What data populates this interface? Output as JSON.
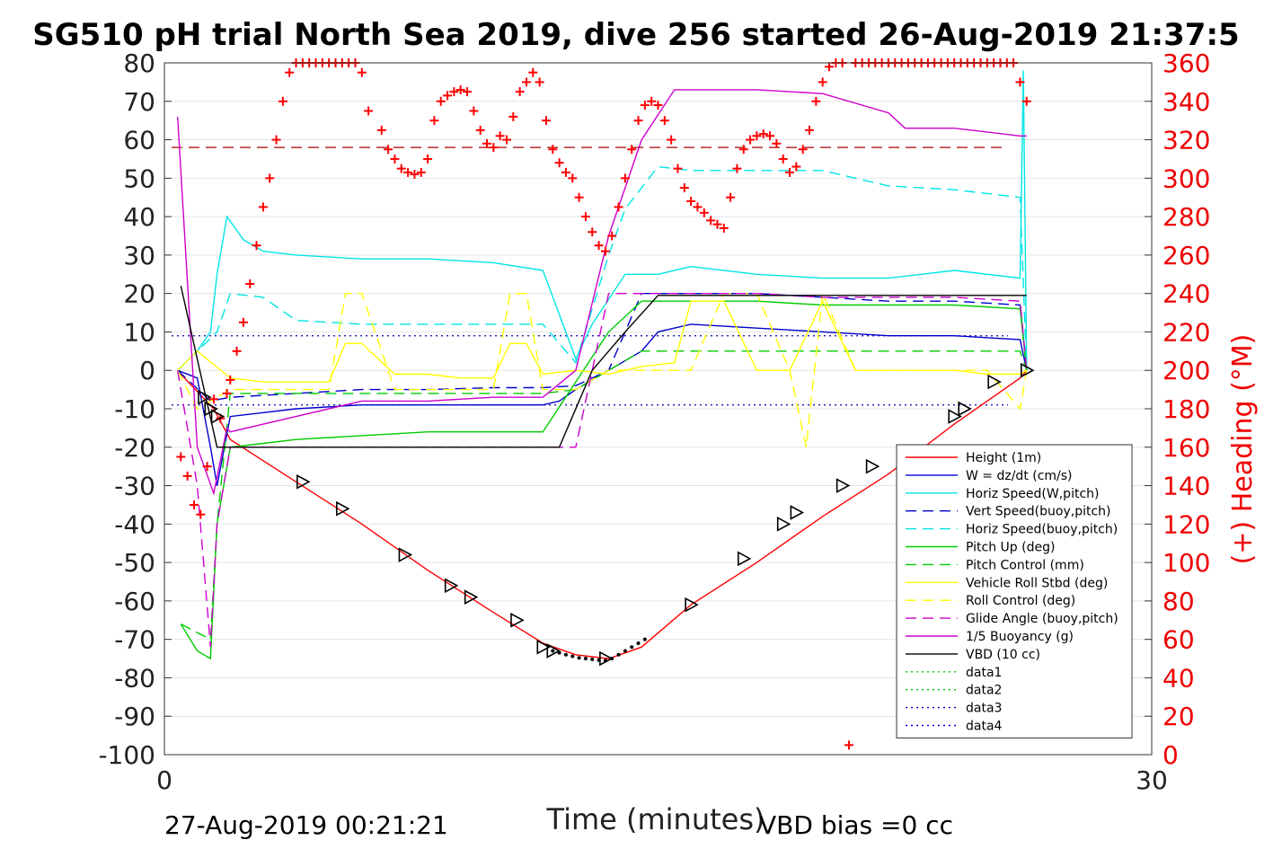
{
  "chart_data": {
    "type": "line",
    "title": "SG510 pH trial North Sea 2019, dive 256 started 26-Aug-2019 21:37:5",
    "xlabel": "Time (minutes)",
    "ylabel_right": "(+) Heading (°M)",
    "footer_left": "27-Aug-2019 00:21:21",
    "footer_right": "VBD bias =0 cc",
    "xlim": [
      0,
      30
    ],
    "ylim_left": [
      -100,
      80
    ],
    "ylim_right": [
      0,
      360
    ],
    "x_ticks": [
      "0",
      "30"
    ],
    "y_ticks_left": [
      "80",
      "70",
      "60",
      "50",
      "40",
      "30",
      "20",
      "10",
      "0",
      "-10",
      "-20",
      "-30",
      "-40",
      "-50",
      "-60",
      "-70",
      "-80",
      "-90",
      "-100"
    ],
    "y_ticks_right": [
      "360",
      "340",
      "320",
      "300",
      "280",
      "260",
      "240",
      "220",
      "200",
      "180",
      "160",
      "140",
      "120",
      "100",
      "80",
      "60",
      "40",
      "20",
      "0"
    ],
    "grid": true,
    "legend_position": "bottom-right",
    "legend": [
      {
        "label": "Height (1m)",
        "color": "#ff0000",
        "dash": "solid"
      },
      {
        "label": "W = dz/dt (cm/s)",
        "color": "#0000cc",
        "dash": "solid"
      },
      {
        "label": "Horiz Speed(W,pitch)",
        "color": "#00e5e5",
        "dash": "solid"
      },
      {
        "label": "Vert Speed(buoy,pitch)",
        "color": "#0000cc",
        "dash": "dashed"
      },
      {
        "label": "Horiz Speed(buoy,pitch)",
        "color": "#00e5e5",
        "dash": "dashed"
      },
      {
        "label": "Pitch Up (deg)",
        "color": "#00cc00",
        "dash": "solid"
      },
      {
        "label": "Pitch Control (mm)",
        "color": "#00cc00",
        "dash": "dashed"
      },
      {
        "label": "Vehicle Roll Stbd (deg)",
        "color": "#ffff00",
        "dash": "solid"
      },
      {
        "label": "Roll Control (deg)",
        "color": "#ffff00",
        "dash": "dashed"
      },
      {
        "label": "Glide Angle (buoy,pitch)",
        "color": "#cc00cc",
        "dash": "dashed"
      },
      {
        "label": "1/5 Buoyancy (g)",
        "color": "#cc00cc",
        "dash": "solid"
      },
      {
        "label": "VBD (10 cc)",
        "color": "#000000",
        "dash": "solid"
      },
      {
        "label": "data1",
        "color": "#00cc00",
        "dash": "dotted"
      },
      {
        "label": "data2",
        "color": "#00cc00",
        "dash": "dotted"
      },
      {
        "label": "data3",
        "color": "#0000cc",
        "dash": "dotted"
      },
      {
        "label": "data4",
        "color": "#0000cc",
        "dash": "dotted"
      }
    ],
    "reference_lines": [
      {
        "axis": "left",
        "y": 58,
        "color": "#aa0000",
        "dash": "dashed"
      },
      {
        "axis": "left",
        "y": 9,
        "color": "#0000aa",
        "dash": "dotted"
      },
      {
        "axis": "left",
        "y": -9,
        "color": "#0000aa",
        "dash": "dotted"
      }
    ],
    "series": [
      {
        "name": "Height (1m)",
        "color": "#ff0000",
        "dash": "solid",
        "axis": "left",
        "x": [
          0.5,
          1.5,
          2,
          4,
          6,
          8,
          10,
          11.5,
          12.5,
          13.5,
          14.5,
          16,
          18,
          20,
          22,
          24,
          26,
          26.2
        ],
        "y": [
          -1,
          -10,
          -18,
          -29,
          -40,
          -52,
          -63,
          -71,
          -74,
          -75,
          -72,
          -61,
          -50,
          -38,
          -27,
          -14,
          -2,
          0
        ]
      },
      {
        "name": "W = dz/dt (cm/s)",
        "color": "#0000cc",
        "dash": "solid",
        "axis": "left",
        "x": [
          0.4,
          1,
          1.4,
          1.6,
          2,
          3,
          4,
          6,
          8,
          10,
          11.5,
          12,
          12.5,
          13.5,
          14.5,
          15,
          16,
          18,
          20,
          22,
          24,
          26,
          26.2
        ],
        "y": [
          0,
          -2,
          -20,
          -30,
          -12,
          -11,
          -10,
          -9,
          -9,
          -9,
          -9,
          -8,
          -5,
          0,
          5,
          10,
          12,
          11,
          10,
          9,
          9,
          8,
          0
        ]
      },
      {
        "name": "Horiz Speed(W,pitch)",
        "color": "#00e5e5",
        "dash": "solid",
        "axis": "left",
        "x": [
          0.4,
          1,
          1.4,
          1.6,
          1.9,
          2.4,
          3,
          4,
          6,
          8,
          10,
          11.5,
          12.5,
          13,
          14,
          15,
          16,
          18,
          20,
          22,
          24,
          26,
          26.1,
          26.2
        ],
        "y": [
          0,
          5,
          10,
          25,
          40,
          34,
          31,
          30,
          29,
          29,
          28,
          26,
          3,
          12,
          25,
          25,
          27,
          25,
          24,
          24,
          26,
          24,
          78,
          0
        ]
      },
      {
        "name": "Vert Speed(buoy,pitch)",
        "color": "#0000cc",
        "dash": "dashed",
        "axis": "left",
        "x": [
          0.4,
          1.4,
          2,
          4,
          6,
          8,
          10,
          11.5,
          12.5,
          13.5,
          14.5,
          16,
          18,
          20,
          22,
          24,
          26,
          26.2
        ],
        "y": [
          0,
          -8,
          -7,
          -6,
          -5,
          -5,
          -4.5,
          -4.5,
          -4,
          0,
          20,
          20,
          20,
          19,
          18,
          18,
          17,
          0
        ]
      },
      {
        "name": "Horiz Speed(buoy,pitch)",
        "color": "#00e5e5",
        "dash": "dashed",
        "axis": "left",
        "x": [
          0.4,
          1.6,
          2,
          3,
          4,
          6,
          8,
          10,
          11.5,
          12.5,
          13.5,
          14,
          15,
          16,
          18,
          20,
          22,
          24,
          26,
          26.2
        ],
        "y": [
          0,
          10,
          20,
          19,
          13,
          12,
          12,
          12,
          12,
          2,
          30,
          42,
          53,
          52,
          52,
          52,
          48,
          47,
          45,
          0
        ]
      },
      {
        "name": "Pitch Up (deg)",
        "color": "#00cc00",
        "dash": "solid",
        "axis": "left",
        "x": [
          0.5,
          1,
          1.4,
          1.6,
          2,
          3,
          4,
          6,
          8,
          10,
          11.5,
          12.5,
          13.5,
          14.5,
          16,
          18,
          20,
          22,
          24,
          26,
          26.2
        ],
        "y": [
          -66,
          -73,
          -75,
          -40,
          -20,
          -19,
          -18,
          -17,
          -16,
          -16,
          -16,
          -3,
          10,
          18,
          18,
          18,
          17,
          17,
          17,
          16,
          0
        ]
      },
      {
        "name": "Pitch Control (mm)",
        "color": "#00cc00",
        "dash": "dashed",
        "axis": "left",
        "x": [
          0.5,
          1.4,
          1.6,
          2,
          4,
          6,
          8,
          10,
          11.5,
          12.5,
          13.5,
          14.5,
          16,
          18,
          20,
          22,
          24,
          26,
          26.2
        ],
        "y": [
          -66,
          -70,
          -40,
          -6,
          -6,
          -6,
          -6,
          -6,
          -6,
          -5,
          0,
          5,
          5,
          5,
          5,
          5,
          5,
          5,
          0
        ]
      },
      {
        "name": "Vehicle Roll Stbd (deg)",
        "color": "#ffff00",
        "dash": "solid",
        "axis": "left",
        "x": [
          0.4,
          1,
          2,
          3,
          4,
          5,
          5.5,
          6,
          7,
          8,
          9,
          10,
          10.5,
          11,
          11.5,
          12.5,
          13.5,
          14.5,
          15.5,
          16,
          17,
          18,
          19,
          20,
          21,
          22,
          23,
          24,
          25,
          26,
          26.2
        ],
        "y": [
          0,
          5,
          -2,
          -3,
          -3,
          -3,
          7,
          7,
          -1,
          -1,
          -2,
          -2,
          7,
          7,
          -1,
          0,
          -1,
          1,
          2,
          18,
          18,
          0,
          0,
          18,
          0,
          0,
          0,
          0,
          -1,
          -1,
          0
        ]
      },
      {
        "name": "Roll Control (deg)",
        "color": "#ffff00",
        "dash": "dashed",
        "axis": "left",
        "x": [
          0.4,
          1,
          2,
          4,
          5,
          5.5,
          6,
          7,
          8,
          9,
          10,
          10.5,
          11,
          11.5,
          12.5,
          13.5,
          14.5,
          16,
          17,
          18,
          19,
          19.5,
          20,
          21,
          22,
          24,
          25,
          26,
          26.2
        ],
        "y": [
          0,
          -10,
          -5,
          -5,
          -5,
          20,
          20,
          -5,
          -5,
          -5,
          -5,
          20,
          20,
          -5,
          -5,
          0,
          0,
          0,
          20,
          20,
          0,
          -20,
          20,
          0,
          0,
          0,
          0,
          -10,
          0
        ]
      },
      {
        "name": "Glide Angle (buoy,pitch)",
        "color": "#cc00cc",
        "dash": "dashed",
        "axis": "left",
        "x": [
          0.4,
          1,
          1.4,
          1.6,
          2,
          4,
          6,
          8,
          10,
          11.5,
          12.5,
          13.5,
          14.5,
          16,
          18,
          20,
          22,
          24,
          26,
          26.2
        ],
        "y": [
          0,
          -30,
          -72,
          -40,
          -20,
          -20,
          -20,
          -20,
          -20,
          -20,
          -20,
          20,
          20,
          20,
          20,
          19,
          19,
          19,
          18,
          0
        ]
      },
      {
        "name": "1/5 Buoyancy (g)",
        "color": "#cc00cc",
        "dash": "solid",
        "axis": "left",
        "x": [
          0.4,
          1,
          1.5,
          1.9,
          2,
          4,
          6,
          8,
          10,
          11.5,
          12.5,
          13.5,
          14.5,
          15.5,
          16,
          18,
          20,
          22,
          22.5,
          24,
          26,
          26.2
        ],
        "y": [
          66,
          -20,
          -32,
          -15,
          -16,
          -12,
          -8,
          -8,
          -7,
          -7,
          0,
          35,
          60,
          73,
          73,
          73,
          72,
          67,
          63,
          63,
          61,
          61
        ]
      },
      {
        "name": "VBD (10 cc)",
        "color": "#000000",
        "dash": "solid",
        "axis": "left",
        "x": [
          0.5,
          1.6,
          4,
          6,
          8,
          10,
          11.5,
          12,
          13,
          14,
          15,
          16,
          18,
          20,
          22,
          24,
          26,
          26.2
        ],
        "y": [
          22,
          -20,
          -20,
          -20,
          -20,
          -20,
          -20,
          -20,
          0,
          10,
          19.5,
          19.5,
          19.5,
          19.5,
          19.5,
          19.5,
          19.5,
          19.5
        ]
      }
    ],
    "heading": {
      "name": "(+) Heading (°M)",
      "color": "#ff0000",
      "marker": "+",
      "axis": "right",
      "x": [
        0.5,
        0.7,
        0.9,
        1.1,
        1.3,
        1.5,
        1.7,
        1.9,
        2,
        2.2,
        2.4,
        2.6,
        2.8,
        3,
        3.2,
        3.4,
        3.6,
        3.8,
        4,
        4.2,
        4.4,
        4.6,
        4.8,
        5,
        5.2,
        5.4,
        5.6,
        5.8,
        6,
        6.2,
        6.6,
        6.8,
        7,
        7.2,
        7.4,
        7.6,
        7.8,
        8,
        8.2,
        8.4,
        8.6,
        8.8,
        9,
        9.2,
        9.4,
        9.6,
        9.8,
        10,
        10.2,
        10.4,
        10.6,
        10.8,
        11,
        11.2,
        11.4,
        11.6,
        11.8,
        12,
        12.2,
        12.4,
        12.6,
        12.8,
        13,
        13.2,
        13.4,
        13.6,
        13.8,
        14,
        14.2,
        14.4,
        14.6,
        14.8,
        15,
        15.2,
        15.4,
        15.6,
        15.8,
        16,
        16.2,
        16.4,
        16.6,
        16.8,
        17,
        17.2,
        17.4,
        17.6,
        17.8,
        18,
        18.2,
        18.4,
        18.6,
        18.8,
        19,
        19.2,
        19.4,
        19.6,
        19.8,
        20,
        20.2,
        20.4,
        20.6,
        20.8,
        21,
        21.2,
        21.4,
        21.6,
        21.8,
        22,
        22.2,
        22.4,
        22.6,
        22.8,
        23,
        23.2,
        23.4,
        23.6,
        23.8,
        24,
        24.2,
        24.4,
        24.6,
        24.8,
        25,
        25.2,
        25.4,
        25.6,
        25.8,
        26,
        26.2
      ],
      "y": [
        155,
        145,
        130,
        125,
        150,
        185,
        175,
        188,
        195,
        210,
        225,
        245,
        265,
        285,
        300,
        320,
        340,
        355,
        360,
        360,
        360,
        360,
        360,
        360,
        360,
        360,
        360,
        360,
        355,
        335,
        325,
        315,
        310,
        305,
        303,
        302,
        303,
        310,
        330,
        340,
        343,
        345,
        346,
        345,
        335,
        325,
        318,
        316,
        322,
        320,
        332,
        345,
        350,
        355,
        350,
        330,
        315,
        308,
        303,
        300,
        290,
        280,
        272,
        265,
        262,
        270,
        285,
        300,
        315,
        330,
        338,
        340,
        338,
        330,
        320,
        305,
        295,
        288,
        285,
        282,
        278,
        276,
        274,
        290,
        305,
        315,
        320,
        322,
        323,
        322,
        318,
        310,
        303,
        306,
        315,
        325,
        340,
        350,
        358,
        360,
        360,
        5,
        360,
        360,
        360,
        360,
        360,
        360,
        360,
        360,
        360,
        360,
        360,
        360,
        360,
        360,
        360,
        360,
        360,
        360,
        360,
        360,
        360,
        360,
        360,
        360,
        360,
        350,
        340
      ]
    },
    "markers": {
      "name": "triangles",
      "shape": "triangle-right",
      "color": "#000000",
      "x": [
        1.2,
        1.4,
        1.6,
        4.2,
        5.4,
        7.3,
        8.7,
        9.3,
        10.7,
        11.5,
        11.8,
        13.4,
        16,
        17.6,
        18.8,
        19.2,
        20.6,
        21.5,
        24,
        24.3,
        25.2,
        26.2
      ],
      "y": [
        -7,
        -10,
        -12,
        -29,
        -36,
        -48,
        -56,
        -59,
        -65,
        -72,
        -73,
        -75,
        -61,
        -49,
        -40,
        -37,
        -30,
        -25,
        -12,
        -10,
        -3,
        0
      ]
    },
    "depth_dots": {
      "name": "apogee",
      "color": "#000000",
      "x": [
        11.8,
        12,
        12.2,
        12.4,
        12.6,
        12.8,
        13,
        13.2,
        13.4,
        13.6,
        13.8,
        14,
        14.2,
        14.4,
        14.6
      ],
      "y": [
        -73,
        -73.5,
        -74,
        -74.4,
        -74.8,
        -75,
        -75.2,
        -75.4,
        -75.5,
        -75,
        -74,
        -73,
        -72,
        -71,
        -70
      ]
    }
  }
}
